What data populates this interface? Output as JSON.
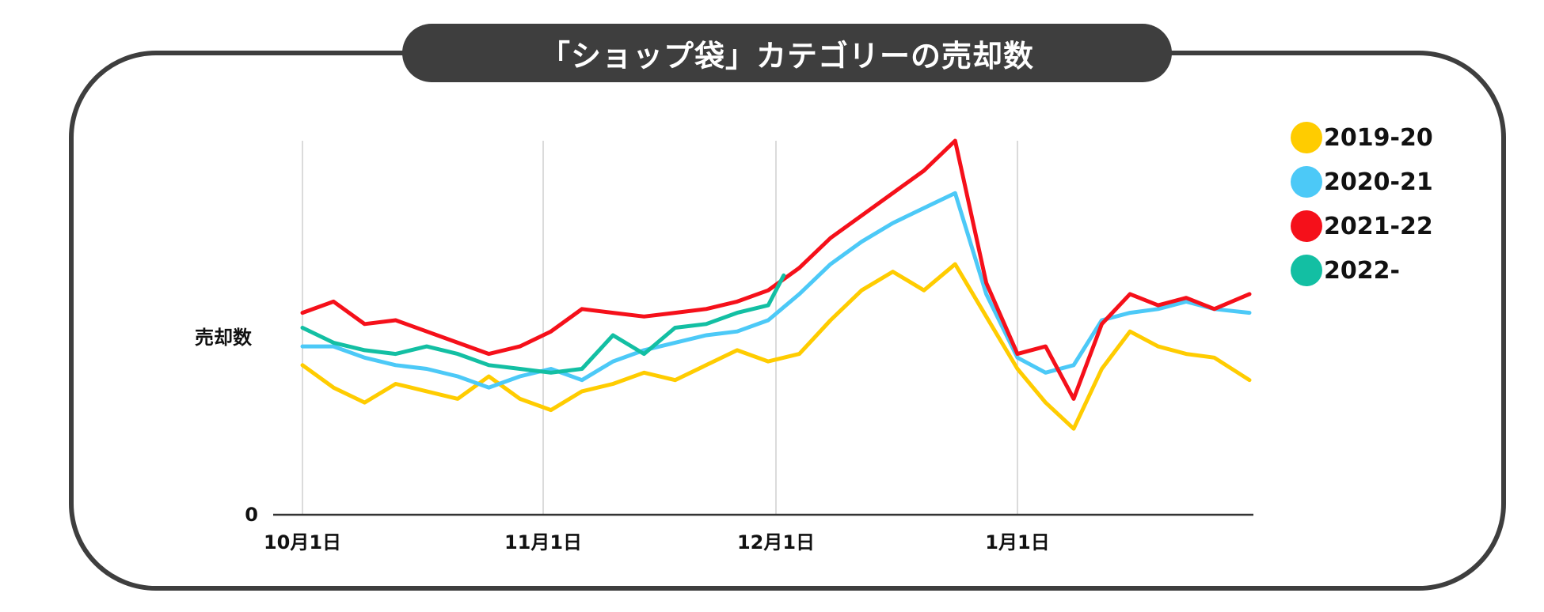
{
  "title": "「ショップ袋」カテゴリーの売却数",
  "colors": {
    "frame": "#3e3e3e",
    "gridline": "#cfcfcf",
    "axis": "#333333"
  },
  "chart_data": {
    "type": "line",
    "title": "「ショップ袋」カテゴリーの売却数",
    "ylabel": "売却数",
    "xlabel": "",
    "x_ticks": [
      "10月1日",
      "11月1日",
      "12月1日",
      "1月1日"
    ],
    "y_ticks": [
      "0"
    ],
    "ylim": [
      0,
      100
    ],
    "xlim_days": [
      0,
      125
    ],
    "grid": "vertical",
    "legend_position": "right",
    "series": [
      {
        "name": "2019-20",
        "color": "#ffcc00",
        "x": [
          0,
          4,
          8,
          12,
          16,
          20,
          24,
          28,
          32,
          36,
          40,
          44,
          48,
          52,
          56,
          60,
          64,
          68,
          72,
          76,
          80,
          84,
          88,
          92,
          96,
          100,
          104,
          108,
          112,
          116,
          120,
          125
        ],
        "values": [
          40,
          34,
          30,
          35,
          33,
          31,
          37,
          31,
          28,
          33,
          35,
          38,
          36,
          40,
          44,
          41,
          43,
          52,
          60,
          65,
          60,
          67,
          53,
          39,
          30,
          23,
          39,
          49,
          45,
          43,
          42,
          36
        ]
      },
      {
        "name": "2020-21",
        "color": "#4cc9f7",
        "x": [
          0,
          4,
          8,
          12,
          16,
          20,
          24,
          28,
          32,
          36,
          40,
          44,
          48,
          52,
          56,
          60,
          64,
          68,
          72,
          76,
          80,
          84,
          88,
          92,
          96,
          100,
          104,
          108,
          112,
          116,
          120,
          125
        ],
        "values": [
          45,
          45,
          42,
          40,
          39,
          37,
          34,
          37,
          39,
          36,
          41,
          44,
          46,
          48,
          49,
          52,
          59,
          67,
          73,
          78,
          82,
          86,
          59,
          42,
          38,
          40,
          52,
          54,
          55,
          57,
          55,
          54
        ]
      },
      {
        "name": "2021-22",
        "color": "#f5101a",
        "x": [
          0,
          4,
          8,
          12,
          16,
          20,
          24,
          28,
          32,
          36,
          40,
          44,
          48,
          52,
          56,
          60,
          64,
          68,
          72,
          76,
          80,
          84,
          88,
          92,
          96,
          100,
          104,
          108,
          112,
          116,
          120,
          125
        ],
        "values": [
          54,
          57,
          51,
          52,
          49,
          46,
          43,
          45,
          49,
          55,
          54,
          53,
          54,
          55,
          57,
          60,
          66,
          74,
          80,
          86,
          92,
          100,
          62,
          43,
          45,
          31,
          51,
          59,
          56,
          58,
          55,
          59
        ]
      },
      {
        "name": "2022-",
        "color": "#13bfa3",
        "x": [
          0,
          4,
          8,
          12,
          16,
          20,
          24,
          28,
          32,
          36,
          40,
          44,
          48,
          52,
          56,
          58,
          60,
          62
        ],
        "values": [
          50,
          46,
          44,
          43,
          45,
          43,
          40,
          39,
          38,
          39,
          48,
          43,
          50,
          51,
          54,
          55,
          56,
          64
        ]
      }
    ]
  }
}
